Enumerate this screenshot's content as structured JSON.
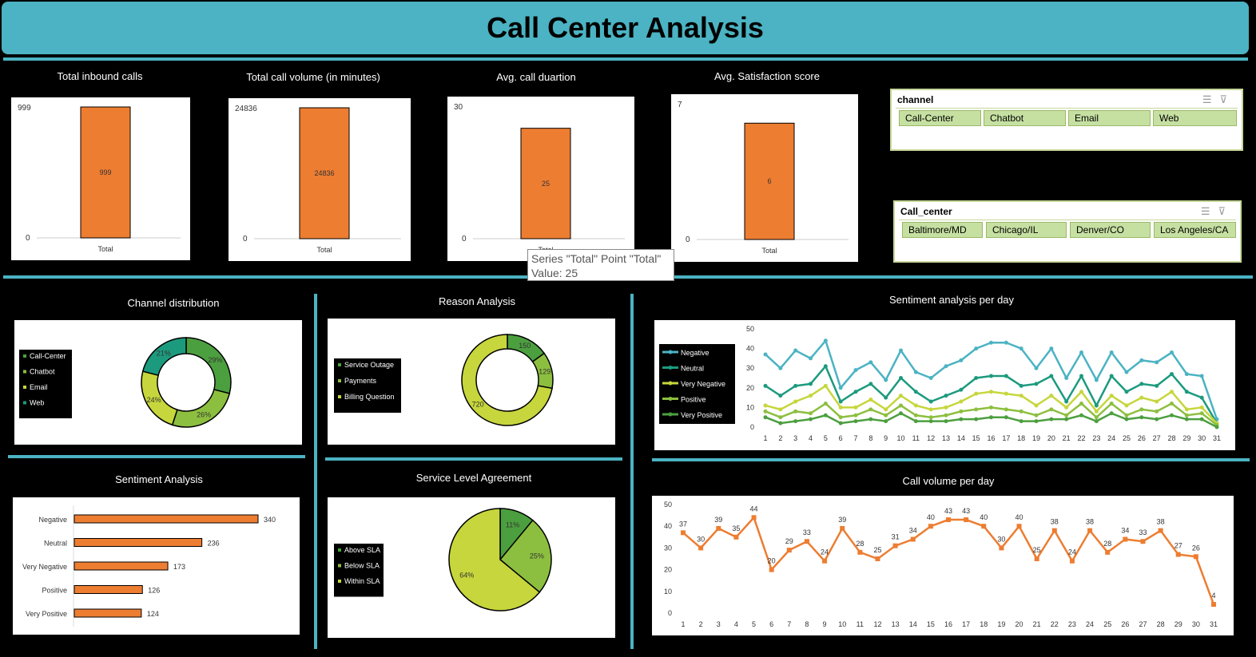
{
  "header": {
    "title": "Call Center Analysis"
  },
  "kpis": [
    {
      "title": "Total inbound calls",
      "axis_max": "999",
      "axis_min": "0",
      "value": 999,
      "ymax": 999,
      "value_label": "999",
      "category": "Total"
    },
    {
      "title": "Total  call volume (in minutes)",
      "axis_max": "24836",
      "axis_min": "0",
      "value": 24836,
      "ymax": 24836,
      "value_label": "24836",
      "category": "Total"
    },
    {
      "title": "Avg. call duartion",
      "axis_max": "30",
      "axis_min": "0",
      "value": 25,
      "ymax": 30,
      "value_label": "25",
      "category": "Total"
    },
    {
      "title": "Avg. Satisfaction score",
      "axis_max": "7",
      "axis_min": "0",
      "value": 6,
      "ymax": 7,
      "value_label": "6",
      "category": "Total"
    }
  ],
  "tooltip": {
    "line1": "Series \"Total\" Point \"Total\"",
    "line2": "Value: 25"
  },
  "slicers": {
    "channel": {
      "title": "channel",
      "items": [
        "Call-Center",
        "Chatbot",
        "Email",
        "Web"
      ]
    },
    "call_center": {
      "title": "Call_center",
      "items": [
        "Baltimore/MD",
        "Chicago/IL",
        "Denver/CO",
        "Los Angeles/CA"
      ]
    }
  },
  "sections": {
    "channel_distribution": "Channel distribution",
    "reason_analysis": "Reason Analysis",
    "sentiment_per_day": "Sentiment analysis per day",
    "sentiment_analysis": "Sentiment Analysis",
    "sla": "Service Level Agreement",
    "call_volume_per_day": "Call volume per day"
  },
  "colors": {
    "accent": "#4BB3C3",
    "bar": "#ED7D31",
    "dark_green": "#2E8B57",
    "green": "#5CA644",
    "lime": "#C6D63C",
    "teal": "#1C9A7E"
  },
  "chart_data": [
    {
      "id": "channel_distribution",
      "type": "pie",
      "donut": true,
      "categories": [
        "Call-Center",
        "Chatbot",
        "Email",
        "Web"
      ],
      "values": [
        29,
        26,
        24,
        21
      ],
      "labels": [
        "29%",
        "26%",
        "24%",
        "21%"
      ],
      "colors": [
        "#4C9F3F",
        "#8CBF3F",
        "#C6D63C",
        "#1C9A7E"
      ]
    },
    {
      "id": "reason_analysis",
      "type": "pie",
      "donut": true,
      "categories": [
        "Service Outage",
        "Payments",
        "Billing Question"
      ],
      "values": [
        150,
        129,
        720
      ],
      "labels": [
        "150",
        "129",
        "720"
      ],
      "colors": [
        "#4C9F3F",
        "#8CBF3F",
        "#C6D63C"
      ]
    },
    {
      "id": "sentiment_analysis",
      "type": "bar",
      "orientation": "horizontal",
      "categories": [
        "Negative",
        "Neutral",
        "Very Negative",
        "Positive",
        "Very Positive"
      ],
      "values": [
        340,
        236,
        173,
        126,
        124
      ],
      "xlim": [
        0,
        340
      ]
    },
    {
      "id": "sla",
      "type": "pie",
      "categories": [
        "Above SLA",
        "Below SLA",
        "Within SLA"
      ],
      "values": [
        11,
        25,
        64
      ],
      "labels": [
        "11%",
        "25%",
        "64%"
      ],
      "colors": [
        "#4C9F3F",
        "#8CBF3F",
        "#C6D63C"
      ]
    },
    {
      "id": "sentiment_per_day",
      "type": "line",
      "x": [
        1,
        2,
        3,
        4,
        5,
        6,
        7,
        8,
        9,
        10,
        11,
        12,
        13,
        14,
        15,
        16,
        17,
        18,
        19,
        20,
        21,
        22,
        23,
        24,
        25,
        26,
        27,
        28,
        29,
        30,
        31
      ],
      "ylim": [
        0,
        50
      ],
      "yticks": [
        0,
        10,
        20,
        30,
        40,
        50
      ],
      "series": [
        {
          "name": "Negative",
          "color": "#4BB3C3",
          "values": [
            37,
            30,
            39,
            35,
            44,
            20,
            29,
            33,
            24,
            39,
            28,
            25,
            31,
            34,
            40,
            43,
            43,
            40,
            30,
            40,
            25,
            38,
            24,
            38,
            28,
            34,
            33,
            38,
            27,
            26,
            4
          ]
        },
        {
          "name": "Neutral",
          "color": "#1C9A7E",
          "values": [
            21,
            16,
            21,
            22,
            31,
            13,
            18,
            22,
            15,
            25,
            18,
            13,
            16,
            19,
            25,
            26,
            26,
            21,
            22,
            26,
            13,
            26,
            11,
            26,
            18,
            22,
            21,
            27,
            18,
            15,
            2
          ]
        },
        {
          "name": "Very Negative",
          "color": "#C6D63C",
          "values": [
            11,
            9,
            13,
            16,
            21,
            10,
            10,
            14,
            9,
            16,
            11,
            9,
            10,
            13,
            17,
            18,
            17,
            16,
            11,
            16,
            10,
            18,
            8,
            16,
            11,
            15,
            13,
            18,
            9,
            10,
            2
          ]
        },
        {
          "name": "Positive",
          "color": "#8CBF3F",
          "values": [
            8,
            5,
            8,
            7,
            12,
            5,
            6,
            9,
            6,
            11,
            6,
            5,
            6,
            8,
            9,
            10,
            9,
            8,
            6,
            9,
            6,
            12,
            5,
            12,
            6,
            9,
            8,
            12,
            6,
            7,
            1
          ]
        },
        {
          "name": "Very Positive",
          "color": "#4C9F3F",
          "values": [
            5,
            2,
            3,
            4,
            6,
            2,
            3,
            4,
            3,
            7,
            3,
            3,
            3,
            4,
            4,
            5,
            5,
            3,
            3,
            4,
            4,
            6,
            3,
            7,
            4,
            5,
            4,
            6,
            4,
            4,
            0
          ]
        }
      ]
    },
    {
      "id": "call_volume_per_day",
      "type": "line",
      "x": [
        1,
        2,
        3,
        4,
        5,
        6,
        7,
        8,
        9,
        10,
        11,
        12,
        13,
        14,
        15,
        16,
        17,
        18,
        19,
        20,
        21,
        22,
        23,
        24,
        25,
        26,
        27,
        28,
        29,
        30,
        31
      ],
      "ylim": [
        0,
        50
      ],
      "yticks": [
        0,
        10,
        20,
        30,
        40,
        50
      ],
      "series": [
        {
          "values": [
            37,
            30,
            39,
            35,
            44,
            20,
            29,
            33,
            24,
            39,
            28,
            25,
            31,
            34,
            40,
            43,
            43,
            40,
            30,
            40,
            25,
            38,
            24,
            38,
            28,
            34,
            33,
            38,
            27,
            26,
            4
          ]
        }
      ]
    }
  ]
}
